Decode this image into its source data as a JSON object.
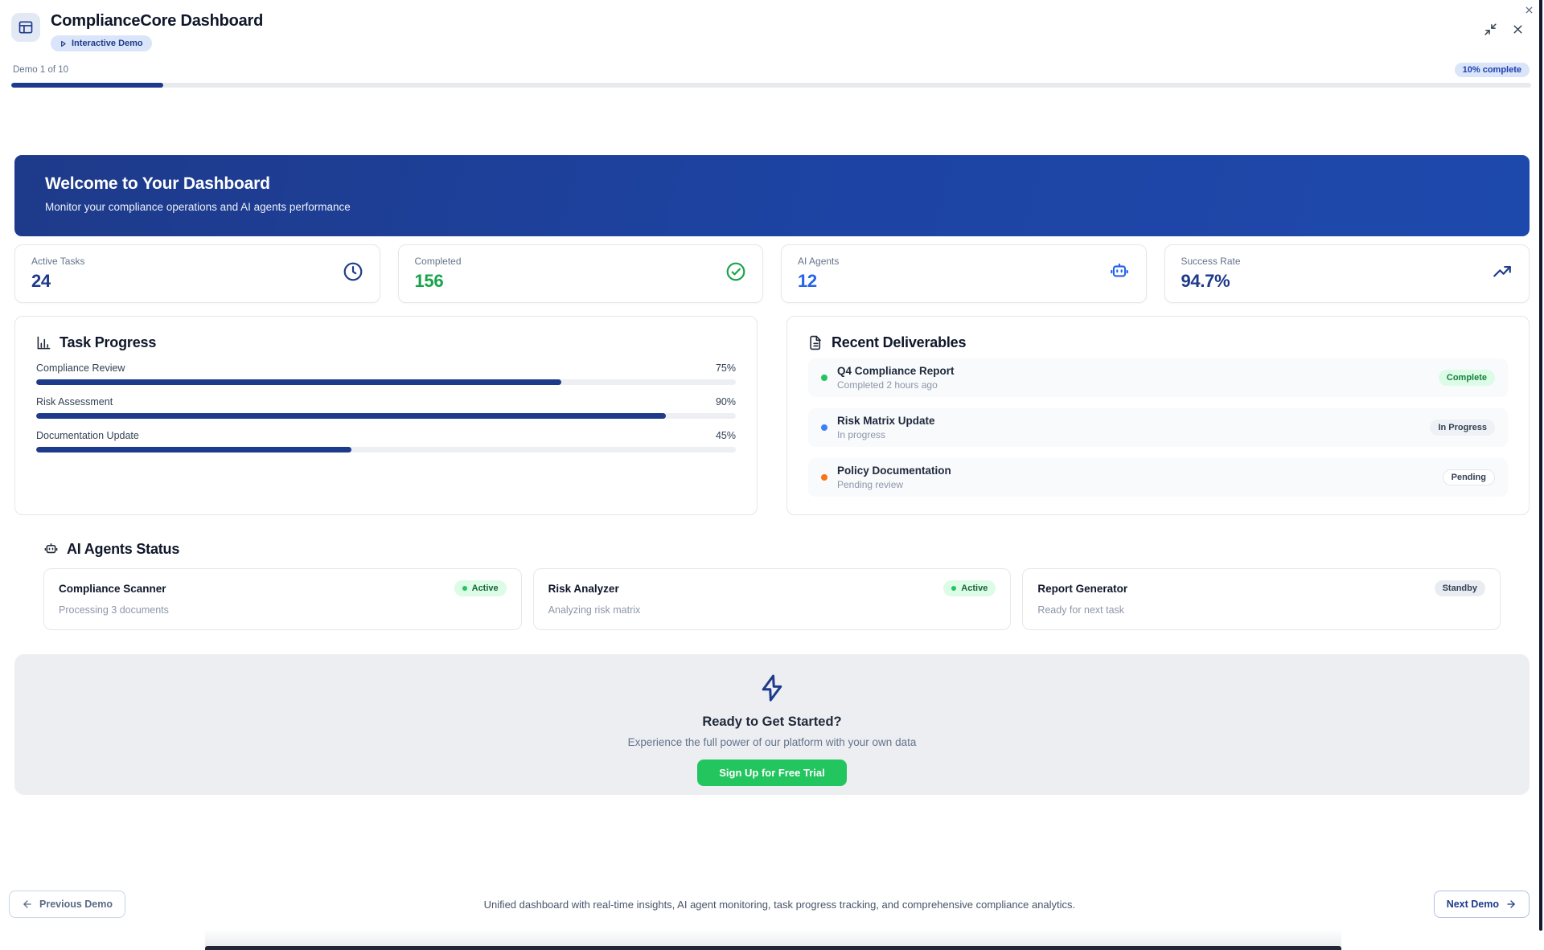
{
  "window": {
    "app_title": "ComplianceCore Dashboard",
    "badge_label": "Interactive Demo",
    "demo_step_label": "Demo 1 of 10",
    "demo_percent": 10,
    "demo_percent_label": "10% complete"
  },
  "banner": {
    "title": "Welcome to Your Dashboard",
    "subtitle": "Monitor your compliance operations and AI agents performance"
  },
  "stats": [
    {
      "label": "Active Tasks",
      "value": "24",
      "icon": "clock-icon",
      "value_color": "#1e3a8a"
    },
    {
      "label": "Completed",
      "value": "156",
      "icon": "check-circle-icon",
      "value_color": "#16a34a"
    },
    {
      "label": "AI Agents",
      "value": "12",
      "icon": "robot-icon",
      "value_color": "#2563eb"
    },
    {
      "label": "Success Rate",
      "value": "94.7%",
      "icon": "trending-up-icon",
      "value_color": "#1e3a8a"
    }
  ],
  "task_progress": {
    "title": "Task Progress",
    "icon": "bar-chart-icon",
    "items": [
      {
        "label": "Compliance Review",
        "percent": 75,
        "percent_label": "75%"
      },
      {
        "label": "Risk Assessment",
        "percent": 90,
        "percent_label": "90%"
      },
      {
        "label": "Documentation Update",
        "percent": 45,
        "percent_label": "45%"
      }
    ]
  },
  "deliverables": {
    "title": "Recent Deliverables",
    "icon": "file-text-icon",
    "items": [
      {
        "title": "Q4 Compliance Report",
        "subtitle": "Completed 2 hours ago",
        "status": "Complete",
        "dot_color": "#22c55e"
      },
      {
        "title": "Risk Matrix Update",
        "subtitle": "In progress",
        "status": "In Progress",
        "dot_color": "#3b82f6"
      },
      {
        "title": "Policy Documentation",
        "subtitle": "Pending review",
        "status": "Pending",
        "dot_color": "#f97316"
      }
    ]
  },
  "agents": {
    "title": "AI Agents Status",
    "icon": "robot-icon",
    "items": [
      {
        "name": "Compliance Scanner",
        "activity": "Processing 3 documents",
        "status": "Active"
      },
      {
        "name": "Risk Analyzer",
        "activity": "Analyzing risk matrix",
        "status": "Active"
      },
      {
        "name": "Report Generator",
        "activity": "Ready for next task",
        "status": "Standby"
      }
    ]
  },
  "cta": {
    "icon": "lightning-icon",
    "title": "Ready to Get Started?",
    "subtitle": "Experience the full power of our platform with your own data",
    "button_label": "Sign Up for Free Trial",
    "button_color": "#22c55e"
  },
  "footer": {
    "prev_label": "Previous Demo",
    "next_label": "Next Demo",
    "description": "Unified dashboard with real-time insights, AI agent monitoring, task progress tracking, and comprehensive compliance analytics."
  },
  "colors": {
    "accent_navy": "#1e3a8a",
    "success_green": "#16a34a",
    "info_blue": "#2563eb",
    "cta_background": "#eceef2"
  }
}
